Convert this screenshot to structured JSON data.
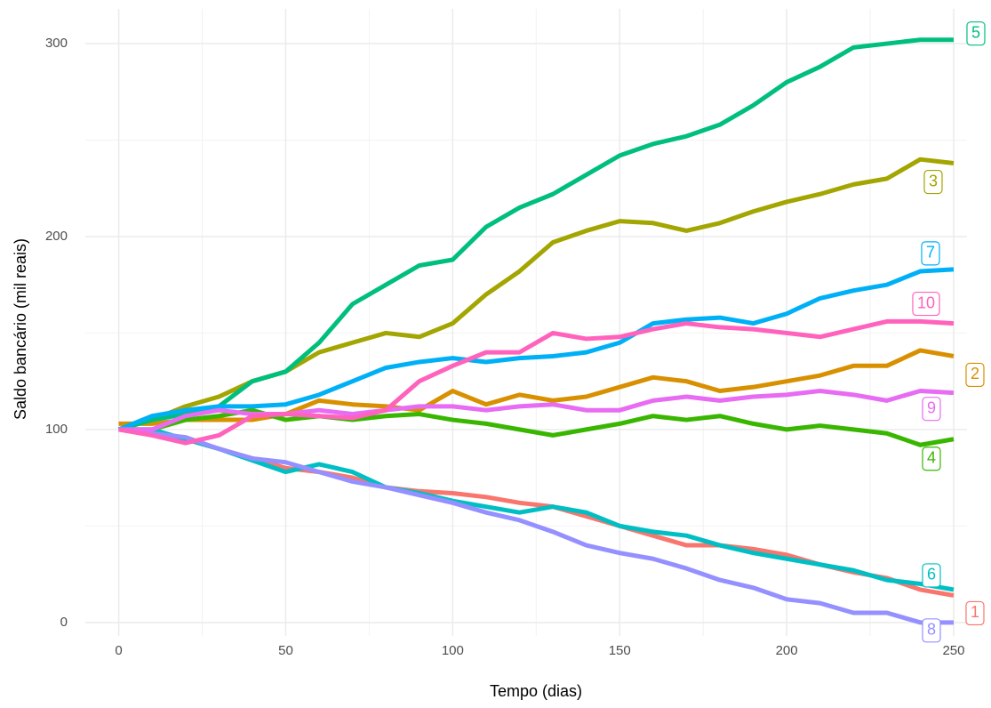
{
  "chart_data": {
    "type": "line",
    "x_label": "Tempo (dias)",
    "y_label": "Saldo bancário (mil reais)",
    "x": [
      0,
      10,
      20,
      30,
      40,
      50,
      60,
      70,
      80,
      90,
      100,
      110,
      120,
      130,
      140,
      150,
      160,
      170,
      180,
      190,
      200,
      210,
      220,
      230,
      240,
      250
    ],
    "series": [
      {
        "name": "1",
        "color": "#F8766D",
        "values": [
          100,
          98,
          95,
          90,
          85,
          80,
          78,
          75,
          70,
          68,
          67,
          65,
          62,
          60,
          55,
          50,
          45,
          40,
          40,
          38,
          35,
          30,
          26,
          23,
          17,
          14
        ]
      },
      {
        "name": "2",
        "color": "#D89000",
        "values": [
          103,
          103,
          105,
          105,
          105,
          108,
          115,
          113,
          112,
          110,
          120,
          113,
          118,
          115,
          117,
          122,
          127,
          125,
          120,
          122,
          125,
          128,
          133,
          133,
          141,
          138
        ]
      },
      {
        "name": "3",
        "color": "#A3A500",
        "values": [
          100,
          105,
          112,
          117,
          125,
          130,
          140,
          145,
          150,
          148,
          155,
          170,
          182,
          197,
          203,
          208,
          207,
          203,
          207,
          213,
          218,
          222,
          227,
          230,
          240,
          238
        ]
      },
      {
        "name": "4",
        "color": "#39B600",
        "values": [
          100,
          100,
          105,
          107,
          110,
          105,
          107,
          105,
          107,
          108,
          105,
          103,
          100,
          97,
          100,
          103,
          107,
          105,
          107,
          103,
          100,
          102,
          100,
          98,
          92,
          95
        ]
      },
      {
        "name": "5",
        "color": "#00BF7D",
        "values": [
          100,
          105,
          108,
          112,
          125,
          130,
          145,
          165,
          175,
          185,
          188,
          205,
          215,
          222,
          232,
          242,
          248,
          252,
          258,
          268,
          280,
          288,
          298,
          300,
          302,
          302
        ]
      },
      {
        "name": "6",
        "color": "#00BFC4",
        "values": [
          100,
          100,
          95,
          90,
          84,
          78,
          82,
          78,
          70,
          67,
          63,
          60,
          57,
          60,
          57,
          50,
          47,
          45,
          40,
          36,
          33,
          30,
          27,
          22,
          20,
          17
        ]
      },
      {
        "name": "7",
        "color": "#00B0F6",
        "values": [
          100,
          107,
          110,
          112,
          112,
          113,
          118,
          125,
          132,
          135,
          137,
          135,
          137,
          138,
          140,
          145,
          155,
          157,
          158,
          155,
          160,
          168,
          172,
          175,
          182,
          183
        ]
      },
      {
        "name": "8",
        "color": "#9590FF",
        "values": [
          100,
          98,
          96,
          90,
          85,
          83,
          78,
          73,
          70,
          66,
          62,
          57,
          53,
          47,
          40,
          36,
          33,
          28,
          22,
          18,
          12,
          10,
          5,
          5,
          0,
          0
        ]
      },
      {
        "name": "9",
        "color": "#E76BF3",
        "values": [
          100,
          100,
          107,
          110,
          108,
          108,
          110,
          108,
          110,
          112,
          112,
          110,
          112,
          113,
          110,
          110,
          115,
          117,
          115,
          117,
          118,
          120,
          118,
          115,
          120,
          119
        ]
      },
      {
        "name": "10",
        "color": "#FF62BC",
        "values": [
          100,
          97,
          93,
          97,
          107,
          108,
          107,
          106,
          110,
          125,
          133,
          140,
          140,
          150,
          147,
          148,
          152,
          155,
          153,
          152,
          150,
          148,
          152,
          156,
          156,
          155
        ]
      }
    ],
    "xlim": [
      -10,
      254
    ],
    "ylim": [
      -7,
      318
    ],
    "xticks": [
      0,
      50,
      100,
      150,
      200,
      250
    ],
    "yticks": [
      0,
      100,
      200,
      300
    ],
    "x_minor_ticks": [
      25,
      75,
      125,
      175,
      225
    ],
    "y_minor_ticks": [
      50,
      150,
      250
    ],
    "grid": true
  }
}
